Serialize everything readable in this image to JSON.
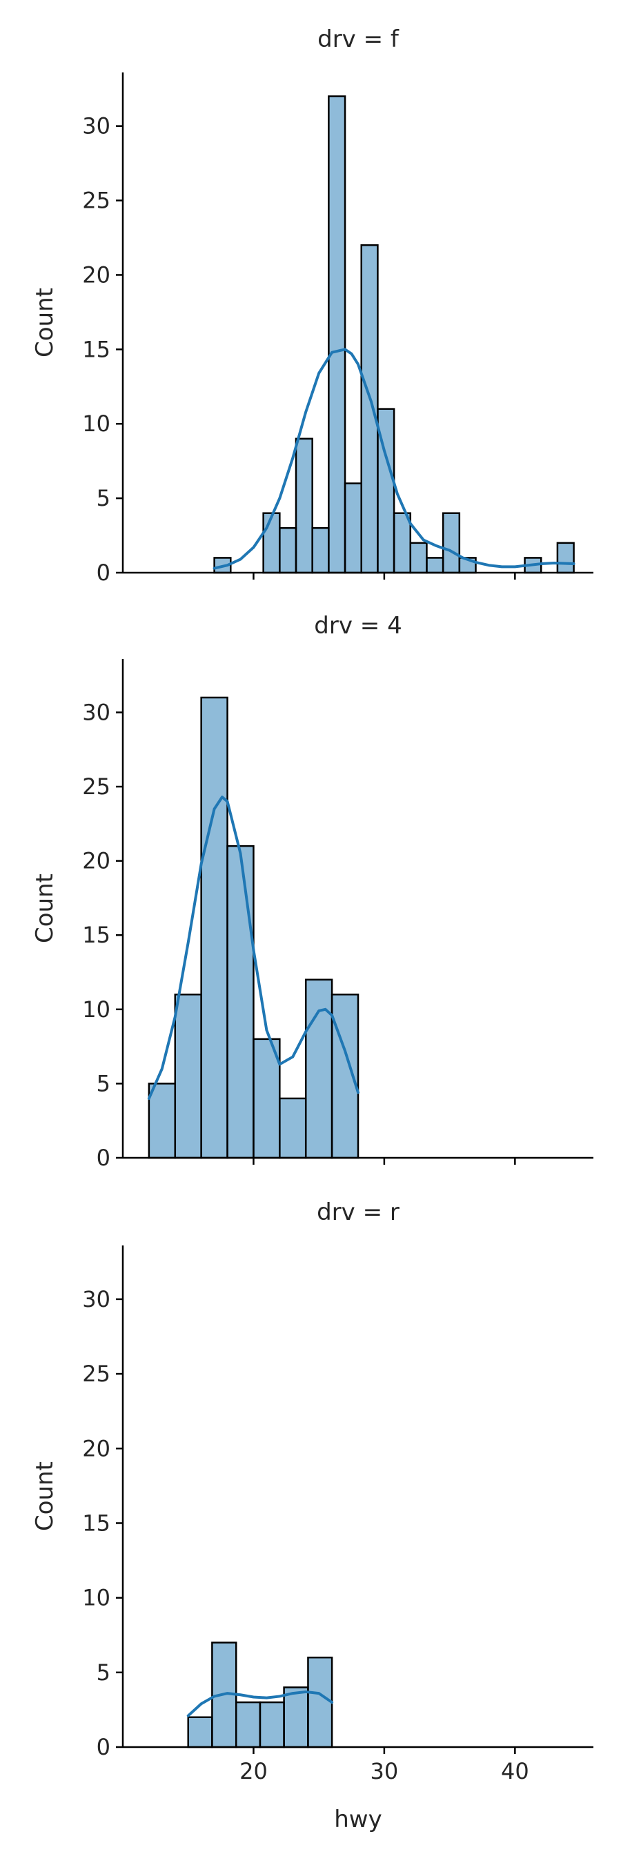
{
  "chart_data": {
    "type": "histogram",
    "xlabel": "hwy",
    "ylabel": "Count",
    "xlim": [
      10,
      46
    ],
    "ylim": [
      0,
      33.6
    ],
    "xticks": [
      20,
      30,
      40
    ],
    "yticks": [
      0,
      5,
      10,
      15,
      20,
      25,
      30
    ],
    "facets": [
      {
        "title": "drv = f",
        "bins": [
          {
            "x0": 17.0,
            "x1": 18.25,
            "count": 1
          },
          {
            "x0": 20.75,
            "x1": 22.0,
            "count": 4
          },
          {
            "x0": 22.0,
            "x1": 23.25,
            "count": 3
          },
          {
            "x0": 23.25,
            "x1": 24.5,
            "count": 9
          },
          {
            "x0": 24.5,
            "x1": 25.75,
            "count": 3
          },
          {
            "x0": 25.75,
            "x1": 27.0,
            "count": 32
          },
          {
            "x0": 27.0,
            "x1": 28.25,
            "count": 6
          },
          {
            "x0": 28.25,
            "x1": 29.5,
            "count": 22
          },
          {
            "x0": 29.5,
            "x1": 30.75,
            "count": 11
          },
          {
            "x0": 30.75,
            "x1": 32.0,
            "count": 4
          },
          {
            "x0": 32.0,
            "x1": 33.25,
            "count": 2
          },
          {
            "x0": 33.25,
            "x1": 34.5,
            "count": 1
          },
          {
            "x0": 34.5,
            "x1": 35.75,
            "count": 4
          },
          {
            "x0": 35.75,
            "x1": 37.0,
            "count": 1
          },
          {
            "x0": 40.75,
            "x1": 42.0,
            "count": 1
          },
          {
            "x0": 43.25,
            "x1": 44.5,
            "count": 2
          }
        ],
        "kde": [
          [
            17.0,
            0.3
          ],
          [
            18.0,
            0.5
          ],
          [
            19.0,
            0.9
          ],
          [
            20.0,
            1.7
          ],
          [
            21.0,
            3.0
          ],
          [
            22.0,
            5.0
          ],
          [
            23.0,
            7.7
          ],
          [
            24.0,
            10.8
          ],
          [
            25.0,
            13.4
          ],
          [
            26.0,
            14.8
          ],
          [
            27.0,
            15.0
          ],
          [
            27.5,
            14.7
          ],
          [
            28.0,
            14.0
          ],
          [
            29.0,
            11.5
          ],
          [
            30.0,
            8.2
          ],
          [
            31.0,
            5.3
          ],
          [
            32.0,
            3.3
          ],
          [
            33.0,
            2.2
          ],
          [
            34.0,
            1.8
          ],
          [
            35.0,
            1.5
          ],
          [
            36.0,
            1.0
          ],
          [
            37.0,
            0.7
          ],
          [
            38.0,
            0.5
          ],
          [
            39.0,
            0.4
          ],
          [
            40.0,
            0.4
          ],
          [
            41.0,
            0.5
          ],
          [
            42.0,
            0.6
          ],
          [
            43.0,
            0.65
          ],
          [
            44.5,
            0.6
          ]
        ]
      },
      {
        "title": "drv = 4",
        "bins": [
          {
            "x0": 12.0,
            "x1": 14.0,
            "count": 5
          },
          {
            "x0": 14.0,
            "x1": 16.0,
            "count": 11
          },
          {
            "x0": 16.0,
            "x1": 18.0,
            "count": 31
          },
          {
            "x0": 18.0,
            "x1": 20.0,
            "count": 21
          },
          {
            "x0": 20.0,
            "x1": 22.0,
            "count": 8
          },
          {
            "x0": 22.0,
            "x1": 24.0,
            "count": 4
          },
          {
            "x0": 24.0,
            "x1": 26.0,
            "count": 12
          },
          {
            "x0": 26.0,
            "x1": 28.0,
            "count": 11
          }
        ],
        "kde": [
          [
            12.0,
            4.0
          ],
          [
            13.0,
            6.0
          ],
          [
            14.0,
            9.5
          ],
          [
            15.0,
            14.5
          ],
          [
            16.0,
            19.8
          ],
          [
            17.0,
            23.5
          ],
          [
            17.6,
            24.3
          ],
          [
            18.0,
            24.0
          ],
          [
            19.0,
            20.5
          ],
          [
            20.0,
            14.0
          ],
          [
            21.0,
            8.6
          ],
          [
            22.0,
            6.3
          ],
          [
            23.0,
            6.8
          ],
          [
            24.0,
            8.5
          ],
          [
            25.0,
            9.9
          ],
          [
            25.5,
            10.0
          ],
          [
            26.0,
            9.6
          ],
          [
            27.0,
            7.2
          ],
          [
            28.0,
            4.4
          ]
        ]
      },
      {
        "title": "drv = r",
        "bins": [
          {
            "x0": 15.0,
            "x1": 16.83,
            "count": 2
          },
          {
            "x0": 16.83,
            "x1": 18.67,
            "count": 7
          },
          {
            "x0": 18.67,
            "x1": 20.5,
            "count": 3
          },
          {
            "x0": 20.5,
            "x1": 22.33,
            "count": 3
          },
          {
            "x0": 22.33,
            "x1": 24.17,
            "count": 4
          },
          {
            "x0": 24.17,
            "x1": 26.0,
            "count": 6
          }
        ],
        "kde": [
          [
            15.0,
            2.1
          ],
          [
            16.0,
            2.9
          ],
          [
            17.0,
            3.4
          ],
          [
            18.0,
            3.6
          ],
          [
            19.0,
            3.5
          ],
          [
            20.0,
            3.35
          ],
          [
            21.0,
            3.3
          ],
          [
            22.0,
            3.4
          ],
          [
            23.0,
            3.6
          ],
          [
            24.0,
            3.7
          ],
          [
            25.0,
            3.6
          ],
          [
            26.0,
            3.0
          ]
        ]
      }
    ]
  }
}
